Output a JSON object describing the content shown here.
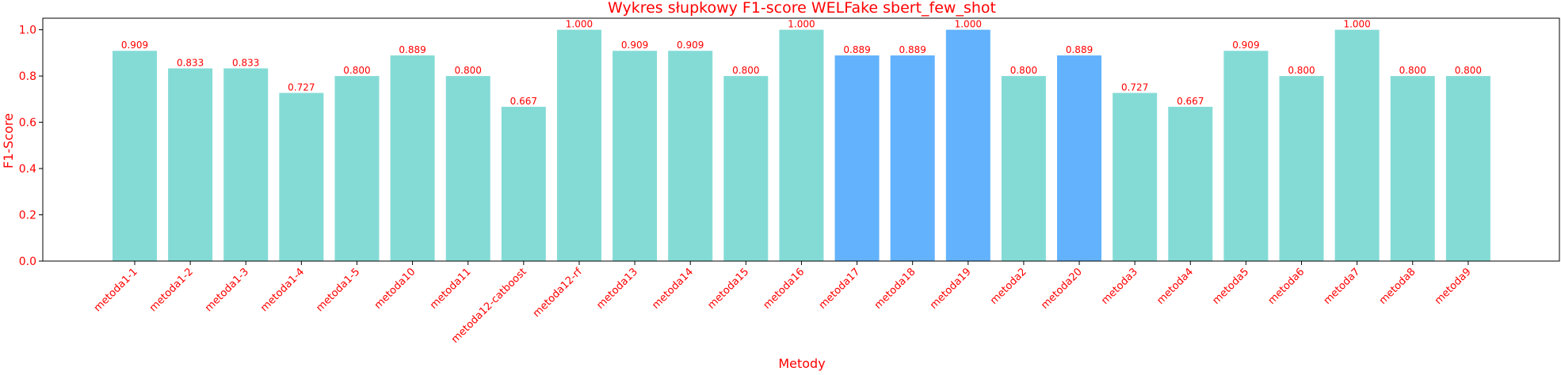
{
  "chart_data": {
    "type": "bar",
    "title": "Wykres słupkowy F1-score WELFake sbert_few_shot",
    "xlabel": "Metody",
    "ylabel": "F1-Score",
    "ylim": [
      0,
      1.05
    ],
    "yticks": [
      0.0,
      0.2,
      0.4,
      0.6,
      0.8,
      1.0
    ],
    "ytick_labels": [
      "0.0",
      "0.2",
      "0.4",
      "0.6",
      "0.8",
      "1.0"
    ],
    "grid": false,
    "categories": [
      "metoda1-1",
      "metoda1-2",
      "metoda1-3",
      "metoda1-4",
      "metoda1-5",
      "metoda10",
      "metoda11",
      "metoda12-catboost",
      "metoda12-rf",
      "metoda13",
      "metoda14",
      "metoda15",
      "metoda16",
      "metoda17",
      "metoda18",
      "metoda19",
      "metoda2",
      "metoda20",
      "metoda3",
      "metoda4",
      "metoda5",
      "metoda6",
      "metoda7",
      "metoda8",
      "metoda9"
    ],
    "values": [
      0.909,
      0.833,
      0.833,
      0.727,
      0.8,
      0.889,
      0.8,
      0.667,
      1.0,
      0.909,
      0.909,
      0.8,
      1.0,
      0.889,
      0.889,
      1.0,
      0.8,
      0.889,
      0.727,
      0.667,
      0.909,
      0.8,
      1.0,
      0.8,
      0.8
    ],
    "value_labels": [
      "0.909",
      "0.833",
      "0.833",
      "0.727",
      "0.800",
      "0.889",
      "0.800",
      "0.667",
      "1.000",
      "0.909",
      "0.909",
      "0.800",
      "1.000",
      "0.889",
      "0.889",
      "1.000",
      "0.800",
      "0.889",
      "0.727",
      "0.667",
      "0.909",
      "0.800",
      "1.000",
      "0.800",
      "0.800"
    ],
    "highlighted": [
      false,
      false,
      false,
      false,
      false,
      false,
      false,
      false,
      false,
      false,
      false,
      false,
      false,
      true,
      true,
      true,
      false,
      true,
      false,
      false,
      false,
      false,
      false,
      false,
      false
    ],
    "colors": {
      "bar": "#84dbd6",
      "bar_highlight": "#62b2fe",
      "text": "#ff0000",
      "axis": "#000000"
    }
  }
}
